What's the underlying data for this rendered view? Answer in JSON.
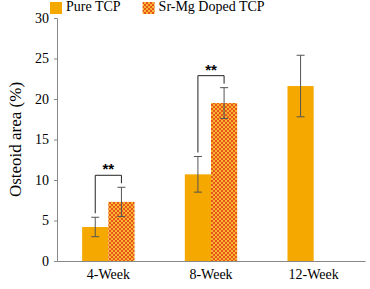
{
  "chart_data": {
    "type": "bar",
    "y_label": "Osteoid area (%)",
    "categories": [
      "4-Week",
      "8-Week",
      "12-Week"
    ],
    "series": [
      {
        "name": "Pure TCP",
        "color": "#f5a800",
        "values": [
          4.2,
          10.7,
          21.6
        ],
        "errors": [
          1.2,
          2.2,
          3.8
        ]
      },
      {
        "name": "Sr-Mg Doped TCP",
        "color": "#e8541a",
        "values": [
          7.3,
          19.5,
          null
        ],
        "errors": [
          1.8,
          1.9,
          null
        ]
      }
    ],
    "ylim": [
      0,
      30
    ],
    "yticks": [
      0,
      5,
      10,
      15,
      20,
      25,
      30
    ],
    "grid": false,
    "legend": "top",
    "annotations": [
      {
        "text": "**",
        "x": "4-Week"
      },
      {
        "text": "**",
        "x": "8-Week"
      }
    ]
  }
}
